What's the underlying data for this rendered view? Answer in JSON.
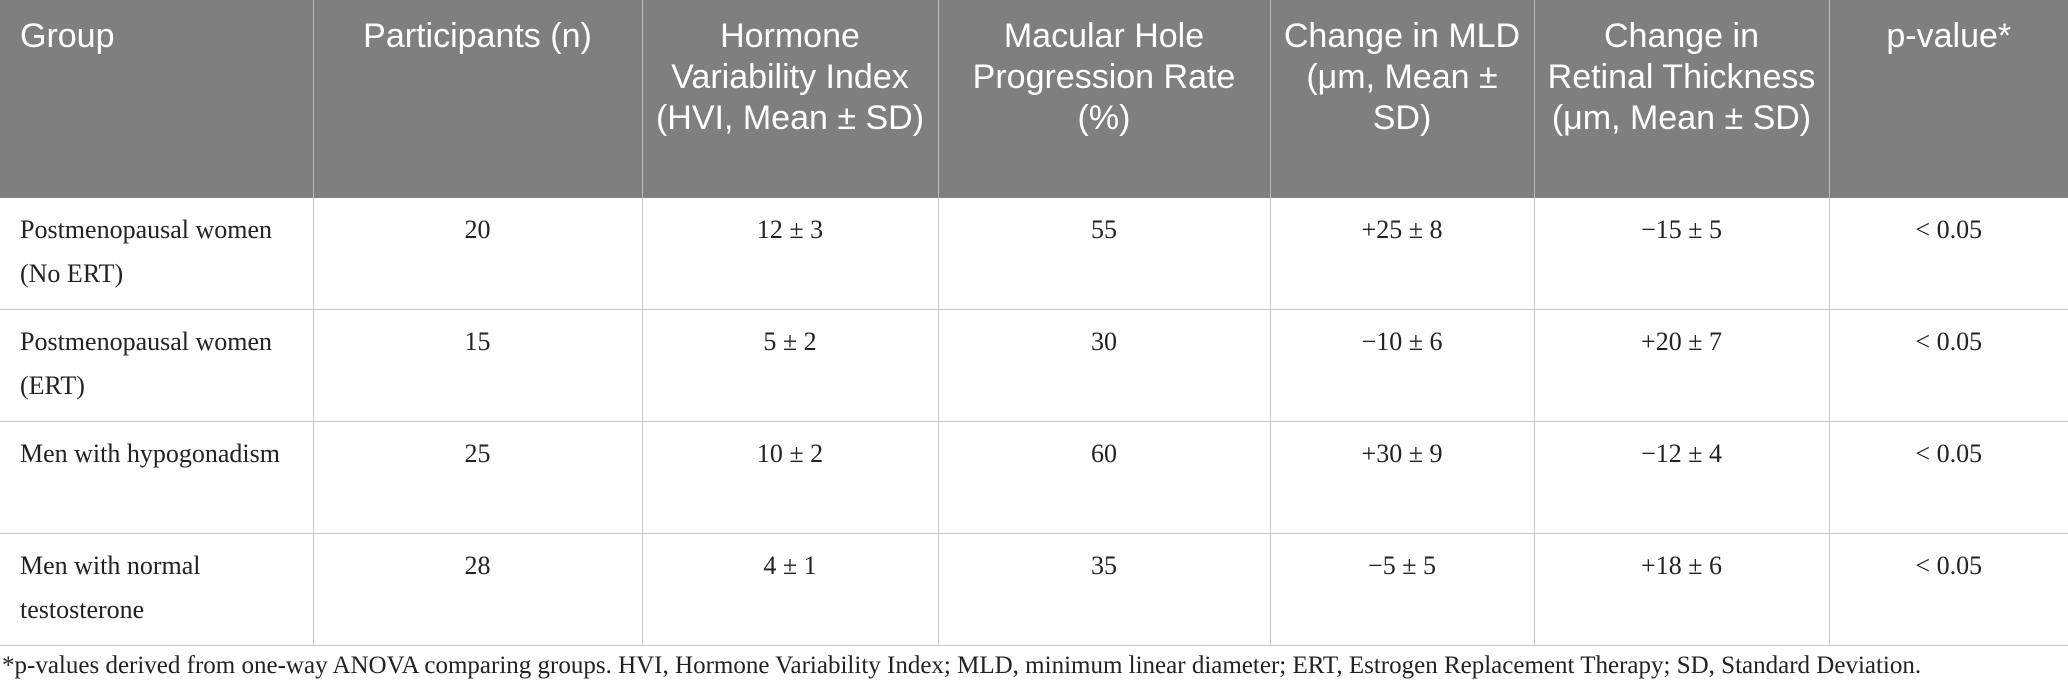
{
  "table": {
    "columns": [
      "Group",
      "Participants (n)",
      "Hormone Variability Index (HVI, Mean ± SD)",
      "Macular Hole Progression Rate (%)",
      "Change in MLD (μm, Mean ± SD)",
      "Change in Retinal Thickness (μm, Mean ± SD)",
      "p-value*"
    ],
    "rows": [
      [
        "Postmenopausal women (No ERT)",
        "20",
        "12 ± 3",
        "55",
        "+25 ± 8",
        "−15 ± 5",
        "< 0.05"
      ],
      [
        "Postmenopausal women (ERT)",
        "15",
        "5 ± 2",
        "30",
        "−10 ± 6",
        "+20 ± 7",
        "< 0.05"
      ],
      [
        "Men with hypogonadism",
        "25",
        "10 ± 2",
        "60",
        "+30 ± 9",
        "−12 ± 4",
        "< 0.05"
      ],
      [
        "Men with normal testosterone",
        "28",
        "4 ± 1",
        "35",
        "−5 ± 5",
        "+18 ± 6",
        "< 0.05"
      ]
    ],
    "footnote": "*p-values derived from one-way ANOVA comparing groups. HVI, Hormone Variability Index; MLD, minimum linear diameter; ERT, Estrogen Replacement Therapy; SD, Standard Deviation."
  }
}
